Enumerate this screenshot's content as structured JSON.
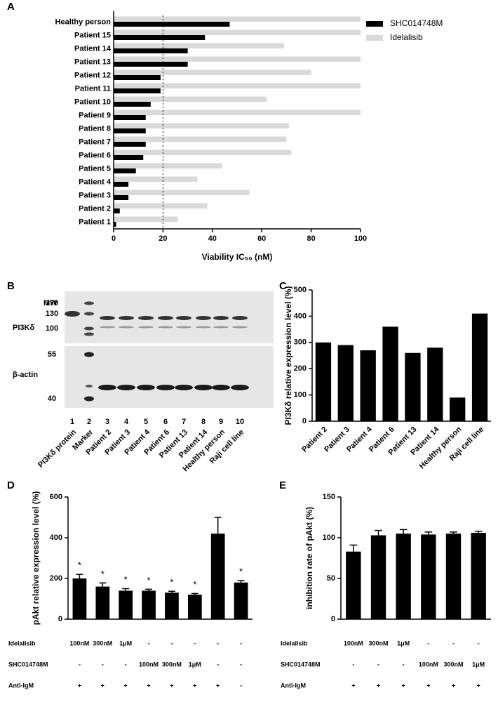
{
  "chart_data": [
    {
      "type": "hbar",
      "panel_label": "A",
      "categories": [
        "Healthy person",
        "Patient 15",
        "Patient 14",
        "Patient 13",
        "Patient 12",
        "Patient 11",
        "Patient 10",
        "Patient 9",
        "Patient 8",
        "Patient 7",
        "Patient 6",
        "Patient 5",
        "Patient 4",
        "Patient 3",
        "Patient 2",
        "Patient 1"
      ],
      "series": [
        {
          "name": "SHC014748M",
          "color": "#000000",
          "values": [
            47,
            37,
            30,
            30,
            19,
            19,
            15,
            13,
            13,
            13,
            12,
            9,
            6,
            6,
            2.5,
            1
          ]
        },
        {
          "name": "Idelalisib",
          "color": "#d9d9d9",
          "values": [
            100,
            100,
            69,
            100,
            80,
            100,
            62,
            100,
            71,
            70,
            72,
            44,
            34,
            55,
            38,
            26
          ]
        }
      ],
      "xlabel": "Viability IC₅₀ (nM)",
      "xlim": [
        0,
        100
      ],
      "xticks": [
        0,
        20,
        40,
        60,
        80,
        100
      ],
      "reference_line": 20,
      "legend": "top-right"
    },
    {
      "type": "bar",
      "panel_label": "C",
      "categories": [
        "Patient 2",
        "Patient 3",
        "Patient 4",
        "Patient 6",
        "Patient 13",
        "Patient 14",
        "Healthy person",
        "Raji cell line"
      ],
      "values": [
        300,
        290,
        270,
        360,
        260,
        280,
        90,
        410
      ],
      "color": "#000000",
      "ylabel": "PI3Kδ relative expression level (%)",
      "ylim": [
        0,
        500
      ],
      "yticks": [
        0,
        100,
        200,
        300,
        400,
        500
      ]
    },
    {
      "type": "bar",
      "panel_label": "D",
      "values": [
        200,
        160,
        140,
        140,
        130,
        120,
        420,
        180
      ],
      "errors": [
        20,
        18,
        10,
        7,
        7,
        6,
        80,
        10
      ],
      "color": "#000000",
      "annotations": [
        "*",
        "*",
        "*",
        "*",
        "*",
        "*",
        null,
        "*"
      ],
      "ylabel": "pAkt relative expression level (%)",
      "ylim": [
        0,
        600
      ],
      "yticks": [
        0,
        200,
        400,
        600
      ],
      "conditions": [
        {
          "name": "Idelalisib",
          "values": [
            "100nM",
            "300nM",
            "1μM",
            "-",
            "-",
            "-",
            "-",
            "-"
          ]
        },
        {
          "name": "SHC014748M",
          "values": [
            "-",
            "-",
            "-",
            "100nM",
            "300nM",
            "1μM",
            "-",
            "-"
          ]
        },
        {
          "name": "Anti-IgM",
          "values": [
            "+",
            "+",
            "+",
            "+",
            "+",
            "+",
            "+",
            "-"
          ]
        }
      ]
    },
    {
      "type": "bar",
      "panel_label": "E",
      "values": [
        83,
        103,
        105,
        104,
        105,
        106
      ],
      "errors": [
        8,
        6,
        5,
        3,
        2,
        2
      ],
      "color": "#000000",
      "ylabel": "inhibition rate of pAkt (%)",
      "ylim": [
        0,
        150
      ],
      "yticks": [
        0,
        50,
        100,
        150
      ],
      "conditions": [
        {
          "name": "Idelalisib",
          "values": [
            "100nM",
            "300nM",
            "1μM",
            "-",
            "-",
            "-"
          ]
        },
        {
          "name": "SHC014748M",
          "values": [
            "-",
            "-",
            "-",
            "100nM",
            "300nM",
            "1μM"
          ]
        },
        {
          "name": "Anti-IgM",
          "values": [
            "+",
            "+",
            "+",
            "+",
            "+",
            "+"
          ]
        }
      ]
    }
  ],
  "blot": {
    "panel_label": "B",
    "mw_title": "MW",
    "top_label": "PI3Kδ",
    "bottom_label": "β-actin",
    "mw_top": [
      170,
      130,
      100
    ],
    "mw_bottom": [
      55,
      40
    ],
    "lane_numbers": [
      1,
      2,
      3,
      4,
      5,
      6,
      7,
      8,
      9,
      10
    ],
    "lane_labels": [
      "PI3Kδ protein",
      "Marker",
      "Patient 2",
      "Patient 3",
      "Patient 4",
      "Patient 6",
      "Patient 13",
      "Patient 14",
      "Healthy person",
      "Raji cell line"
    ]
  }
}
